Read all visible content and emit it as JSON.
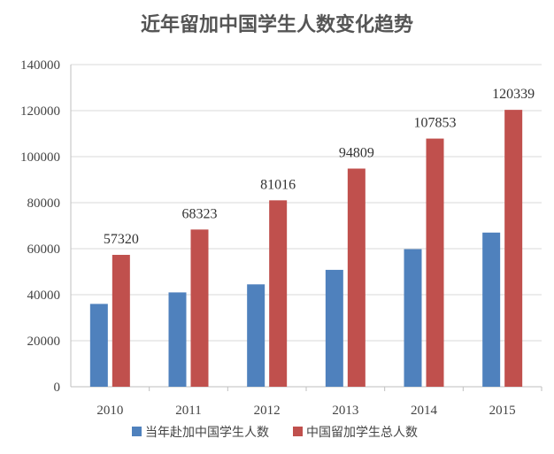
{
  "chart_data": {
    "type": "bar",
    "title": "近年留加中国学生人数变化趋势",
    "categories": [
      "2010",
      "2011",
      "2012",
      "2013",
      "2014",
      "2015"
    ],
    "series": [
      {
        "name": "当年赴加中国学生人数",
        "color": "#4f81bd",
        "values": [
          36000,
          41000,
          44500,
          50800,
          59800,
          67000
        ]
      },
      {
        "name": "中国留加学生总人数",
        "color": "#c0504d",
        "values": [
          57320,
          68323,
          81016,
          94809,
          107853,
          120339
        ],
        "data_labels": [
          "57320",
          "68323",
          "81016",
          "94809",
          "107853",
          "120339"
        ]
      }
    ],
    "ylim": [
      0,
      140000
    ],
    "yticks": [
      0,
      20000,
      40000,
      60000,
      80000,
      100000,
      120000,
      140000
    ],
    "ytick_labels": [
      "0",
      "20000",
      "40000",
      "60000",
      "80000",
      "100000",
      "120000",
      "140000"
    ],
    "xlabel": "",
    "ylabel": "",
    "grid": true,
    "legend_position": "bottom"
  }
}
